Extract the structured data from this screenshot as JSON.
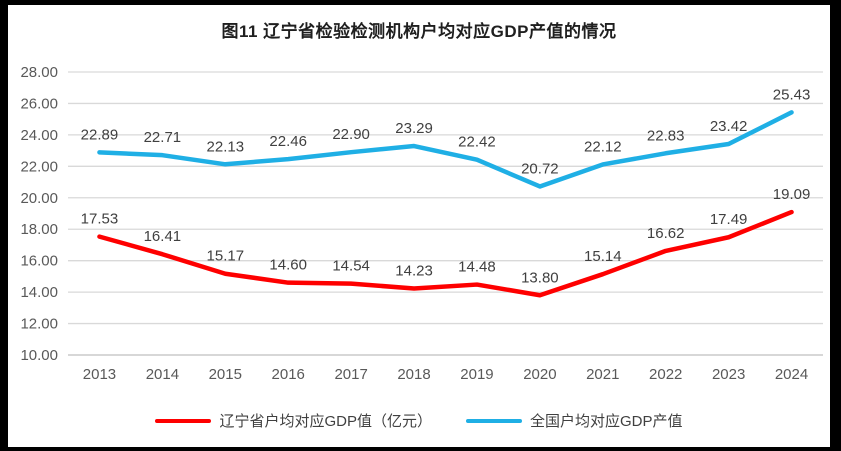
{
  "chart_data": {
    "type": "line",
    "title": "图11 辽宁省检验检测机构户均对应GDP产值的情况",
    "categories": [
      "2013",
      "2014",
      "2015",
      "2016",
      "2017",
      "2018",
      "2019",
      "2020",
      "2021",
      "2022",
      "2023",
      "2024"
    ],
    "series": [
      {
        "name": "辽宁省户均对应GDP值（亿元）",
        "color": "#fe0000",
        "values": [
          17.53,
          16.41,
          15.17,
          14.6,
          14.54,
          14.23,
          14.48,
          13.8,
          15.14,
          16.62,
          17.49,
          19.09
        ]
      },
      {
        "name": "全国户均对应GDP产值",
        "color": "#1fafe5",
        "values": [
          22.89,
          22.71,
          22.13,
          22.46,
          22.9,
          23.29,
          22.42,
          20.72,
          22.12,
          22.83,
          23.42,
          25.43
        ]
      }
    ],
    "y_ticks": [
      "28.00",
      "26.00",
      "24.00",
      "22.00",
      "20.00",
      "18.00",
      "16.00",
      "14.00",
      "12.00",
      "10.00"
    ],
    "ylim": [
      10,
      28
    ],
    "xlabel": "",
    "ylabel": "",
    "grid": true,
    "value_labels": true,
    "legend_position": "bottom",
    "colors": {
      "gridline": "#d9d9d9",
      "axis_line": "#bfbfbf",
      "tick_text": "#595959",
      "label_text": "#404040",
      "frame": "#000000"
    }
  }
}
